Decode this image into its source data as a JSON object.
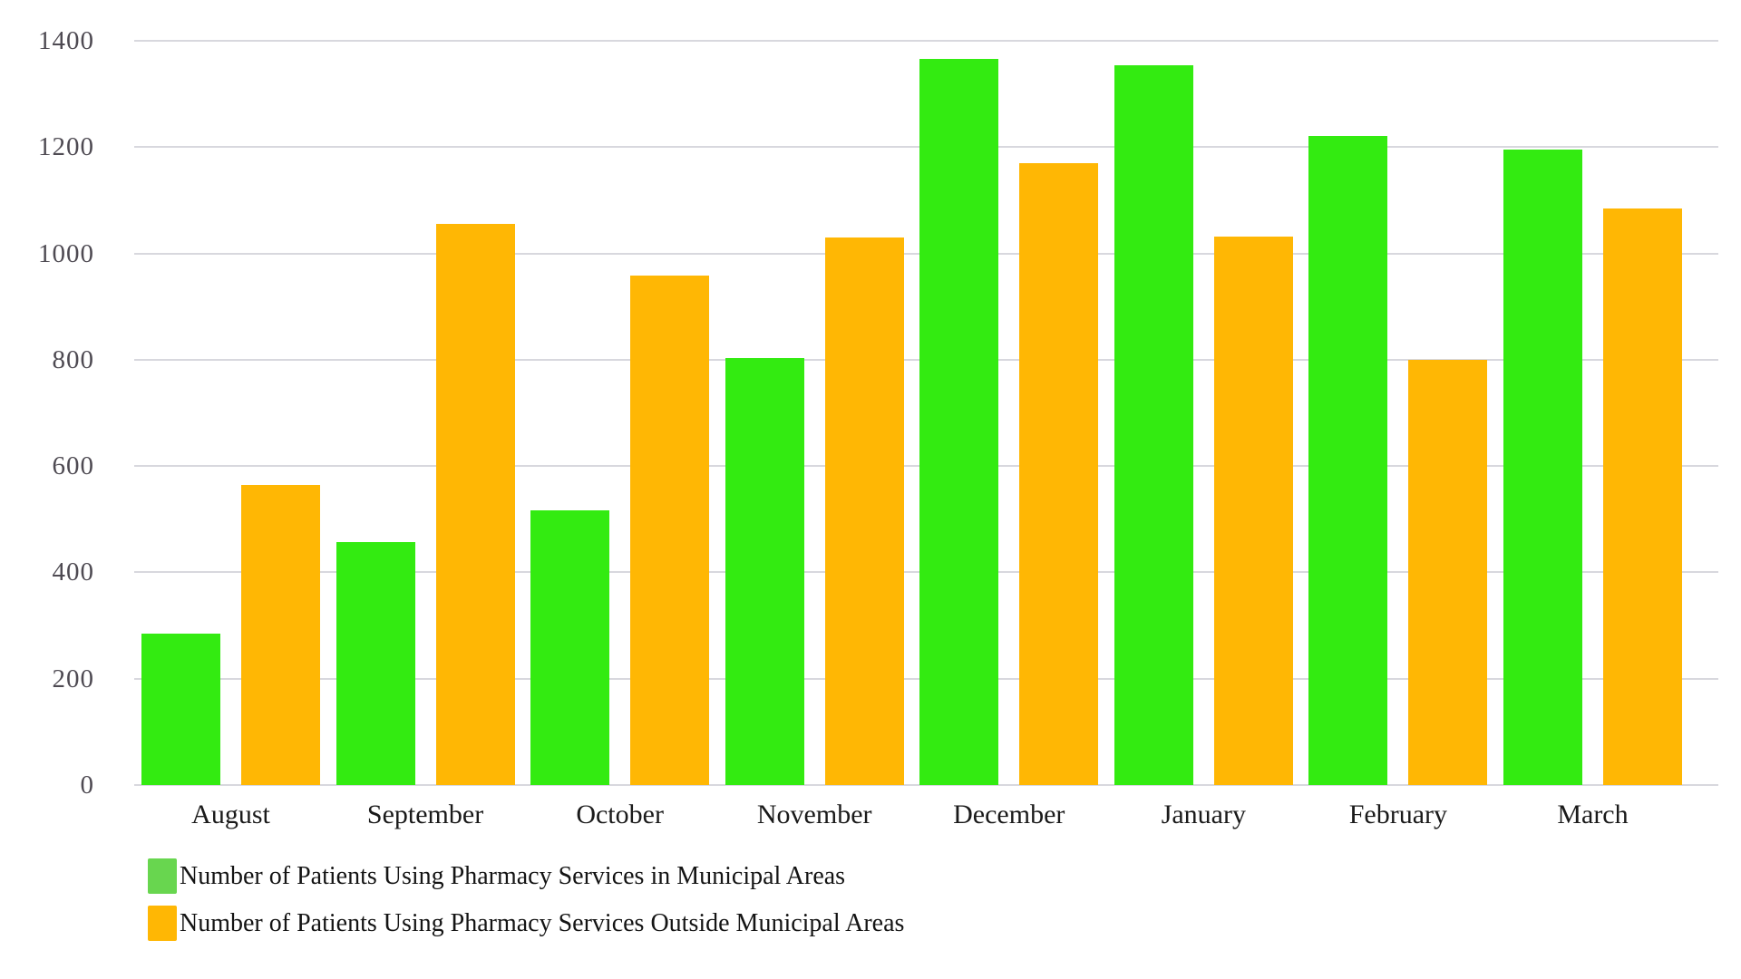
{
  "chart_data": {
    "type": "bar",
    "title": "",
    "categories": [
      "August",
      "September",
      "October",
      "November",
      "December",
      "January",
      "February",
      "March"
    ],
    "series": [
      {
        "name": "Number of Patients Using Pharmacy Services in Municipal Areas",
        "bar_color": "#33EB11",
        "legend_color": "#68D64F",
        "values": [
          285,
          457,
          516,
          804,
          1366,
          1354,
          1221,
          1196
        ]
      },
      {
        "name": "Number of Patients Using Pharmacy Services Outside Municipal Areas",
        "bar_color": "#FFB704",
        "legend_color": "#FFB704",
        "values": [
          565,
          1055,
          958,
          1030,
          1170,
          1032,
          800,
          1084
        ]
      }
    ],
    "ylim": [
      0,
      1400
    ],
    "yticks": [
      "0",
      "200",
      "400",
      "600",
      "800",
      "1000",
      "1200",
      "1400"
    ],
    "grid": true,
    "legend_position": "bottom-left"
  },
  "colors": {
    "background": "#ffffff",
    "gridline": "#D8D8DE",
    "ytick_label": "#4e4a52",
    "xtick_label": "#1a1a1a",
    "legend_text": "#141414"
  }
}
